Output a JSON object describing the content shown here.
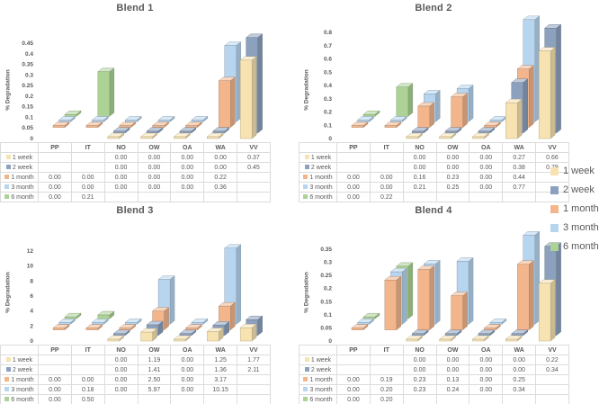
{
  "colors": {
    "text": "#595959",
    "table_border": "#DCDCDC",
    "background": "#ffffff"
  },
  "legend": {
    "position": "right",
    "items": [
      {
        "label": "1 week",
        "color": "#F7E3B2"
      },
      {
        "label": "2 week",
        "color": "#8CA1BE"
      },
      {
        "label": "1 month",
        "color": "#F3B68C"
      },
      {
        "label": "3 month",
        "color": "#B7D5EF"
      },
      {
        "label": "6 month",
        "color": "#ACD395"
      }
    ]
  },
  "chart_data": [
    {
      "type": "bar",
      "title": "Blend 1",
      "ylabel": "% Degradation",
      "ymax": 0.45,
      "ylim": [
        0,
        0.45
      ],
      "yticks": [
        "0",
        "0.05",
        "0.1",
        "0.15",
        "0.2",
        "0.25",
        "0.3",
        "0.35",
        "0.4",
        "0.45"
      ],
      "categories": [
        "PP",
        "IT",
        "NO",
        "OW",
        "OA",
        "WA",
        "VV"
      ],
      "series": [
        {
          "name": "1 week",
          "values": [
            null,
            null,
            0,
            0,
            0,
            0,
            0.37
          ]
        },
        {
          "name": "2 week",
          "values": [
            null,
            null,
            0,
            0,
            0,
            0,
            0.45
          ]
        },
        {
          "name": "1 month",
          "values": [
            0,
            0,
            0,
            0,
            0,
            0.22,
            null
          ]
        },
        {
          "name": "3 month",
          "values": [
            0,
            0,
            0,
            0,
            0,
            0.36,
            null
          ]
        },
        {
          "name": "6 month",
          "values": [
            0,
            0.21,
            null,
            null,
            null,
            null,
            null
          ]
        }
      ]
    },
    {
      "type": "bar",
      "title": "Blend 2",
      "ylabel": "% Degradation",
      "ymax": 0.8,
      "ylim": [
        0,
        0.8
      ],
      "yticks": [
        "0",
        "0.1",
        "0.2",
        "0.3",
        "0.4",
        "0.5",
        "0.6",
        "0.7",
        "0.8"
      ],
      "categories": [
        "PP",
        "IT",
        "NO",
        "OW",
        "OA",
        "WA",
        "VV"
      ],
      "series": [
        {
          "name": "1 week",
          "values": [
            null,
            null,
            0,
            0,
            0,
            0.27,
            0.66
          ]
        },
        {
          "name": "2 week",
          "values": [
            null,
            null,
            0,
            0,
            0,
            0.38,
            0.79
          ]
        },
        {
          "name": "1 month",
          "values": [
            0,
            0,
            0.16,
            0.23,
            0,
            0.44,
            null
          ]
        },
        {
          "name": "3 month",
          "values": [
            0,
            0,
            0.21,
            0.25,
            0,
            0.77,
            null
          ]
        },
        {
          "name": "6 month",
          "values": [
            0,
            0.22,
            null,
            null,
            null,
            null,
            null
          ]
        }
      ]
    },
    {
      "type": "bar",
      "title": "Blend 3",
      "ylabel": "% Degradation",
      "ymax": 12,
      "ylim": [
        0,
        12
      ],
      "yticks": [
        "0",
        "2",
        "4",
        "6",
        "8",
        "10",
        "12"
      ],
      "categories": [
        "PP",
        "IT",
        "NO",
        "OW",
        "OA",
        "WA",
        "VV"
      ],
      "series": [
        {
          "name": "1 week",
          "values": [
            null,
            null,
            0,
            1.19,
            0,
            1.25,
            1.77
          ]
        },
        {
          "name": "2 week",
          "values": [
            null,
            null,
            0,
            1.41,
            0,
            1.36,
            2.11
          ]
        },
        {
          "name": "1 month",
          "values": [
            0,
            0,
            0,
            2.5,
            0,
            3.17,
            null
          ]
        },
        {
          "name": "3 month",
          "values": [
            0,
            0.18,
            0,
            5.97,
            0,
            10.15,
            null
          ]
        },
        {
          "name": "6 month",
          "values": [
            0,
            0.5,
            null,
            null,
            null,
            null,
            null
          ]
        }
      ]
    },
    {
      "type": "bar",
      "title": "Blend 4",
      "ylabel": "% Degradation",
      "ymax": 0.35,
      "ylim": [
        0,
        0.35
      ],
      "yticks": [
        "0",
        "0.05",
        "0.1",
        "0.15",
        "0.2",
        "0.25",
        "0.3",
        "0.35"
      ],
      "categories": [
        "PP",
        "IT",
        "NO",
        "OW",
        "OA",
        "WA",
        "VV"
      ],
      "series": [
        {
          "name": "1 week",
          "values": [
            null,
            null,
            0,
            0,
            0,
            0,
            0.22
          ]
        },
        {
          "name": "2 week",
          "values": [
            null,
            null,
            0,
            0,
            0,
            0,
            0.34
          ]
        },
        {
          "name": "1 month",
          "values": [
            0,
            0.19,
            0.23,
            0.13,
            0,
            0.25,
            null
          ]
        },
        {
          "name": "3 month",
          "values": [
            0,
            0.2,
            0.23,
            0.24,
            0,
            0.34,
            null
          ]
        },
        {
          "name": "6 month",
          "values": [
            0,
            0.2,
            null,
            null,
            null,
            null,
            null
          ]
        }
      ]
    }
  ]
}
